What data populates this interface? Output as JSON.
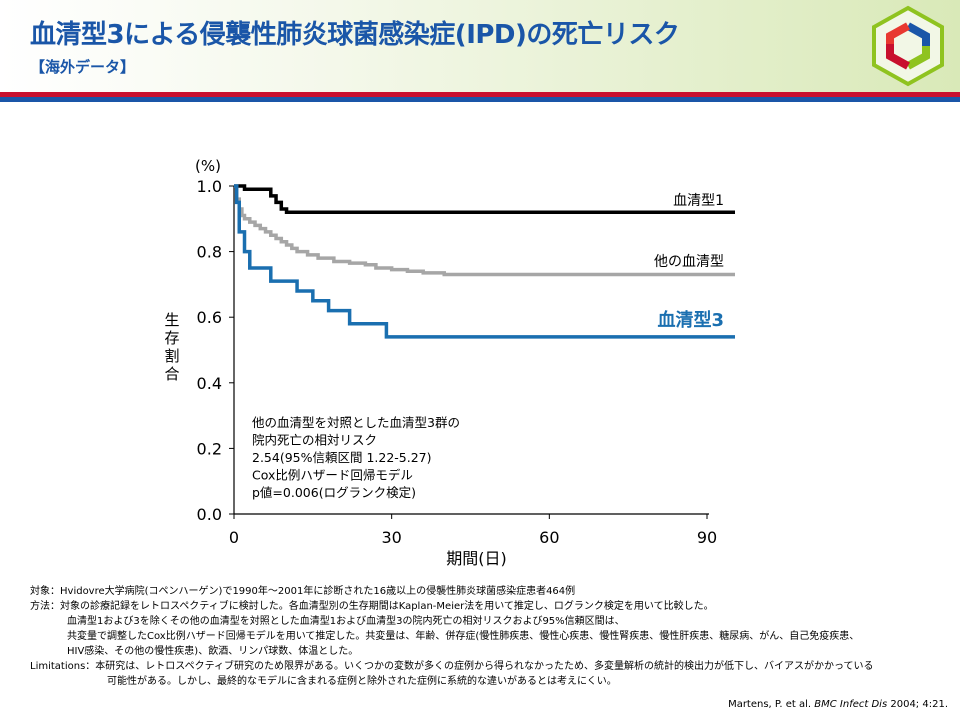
{
  "header": {
    "title": "血清型3による侵襲性肺炎球菌感染症(IPD)の死亡リスク",
    "subtitle": "【海外データ】"
  },
  "colors": {
    "title": "#1a56a8",
    "serotype1": "#000000",
    "other": "#a6a6a6",
    "serotype3": "#1a6fb0",
    "band_red": "#c8102e",
    "band_blue": "#1a56a8"
  },
  "logo": {
    "icon": "hexagon-logo-icon"
  },
  "chart_data": {
    "type": "line",
    "y_unit": "(%)",
    "ylabel": "生存割合",
    "xlabel": "期間(日)",
    "xlim": [
      0,
      90
    ],
    "ylim": [
      0.0,
      1.0
    ],
    "x_ticks": [
      "0",
      "30",
      "60",
      "90"
    ],
    "y_ticks": [
      "0.0",
      "0.2",
      "0.4",
      "0.6",
      "0.8",
      "1.0"
    ],
    "series": [
      {
        "name": "血清型1",
        "color": "#000000",
        "step": true,
        "points": [
          [
            0,
            1.0
          ],
          [
            2,
            0.99
          ],
          [
            7,
            0.97
          ],
          [
            8,
            0.95
          ],
          [
            9,
            0.93
          ],
          [
            10,
            0.92
          ],
          [
            90,
            0.92
          ]
        ]
      },
      {
        "name": "他の血清型",
        "color": "#a6a6a6",
        "step": true,
        "points": [
          [
            0,
            1.0
          ],
          [
            0.5,
            0.96
          ],
          [
            1,
            0.93
          ],
          [
            1.5,
            0.91
          ],
          [
            2,
            0.9
          ],
          [
            3,
            0.89
          ],
          [
            4,
            0.88
          ],
          [
            5,
            0.87
          ],
          [
            6,
            0.86
          ],
          [
            7,
            0.85
          ],
          [
            8,
            0.84
          ],
          [
            9,
            0.83
          ],
          [
            10,
            0.82
          ],
          [
            11,
            0.81
          ],
          [
            12,
            0.8
          ],
          [
            14,
            0.79
          ],
          [
            16,
            0.78
          ],
          [
            19,
            0.77
          ],
          [
            22,
            0.765
          ],
          [
            25,
            0.76
          ],
          [
            27,
            0.75
          ],
          [
            30,
            0.745
          ],
          [
            33,
            0.74
          ],
          [
            36,
            0.735
          ],
          [
            40,
            0.73
          ],
          [
            90,
            0.73
          ]
        ]
      },
      {
        "name": "血清型3",
        "color": "#1a6fb0",
        "step": true,
        "points": [
          [
            0,
            1.0
          ],
          [
            0.5,
            0.95
          ],
          [
            1,
            0.86
          ],
          [
            2,
            0.8
          ],
          [
            3,
            0.75
          ],
          [
            7,
            0.71
          ],
          [
            12,
            0.68
          ],
          [
            15,
            0.65
          ],
          [
            18,
            0.62
          ],
          [
            22,
            0.58
          ],
          [
            29,
            0.54
          ],
          [
            90,
            0.54
          ]
        ]
      }
    ],
    "annotation": [
      "他の血清型を対照とした血清型3群の",
      "院内死亡の相対リスク",
      "2.54(95%信頼区間 1.22-5.27)",
      "Cox比例ハザード回帰モデル",
      "p値=0.006(ログランク検定)"
    ]
  },
  "notes": {
    "subject_label": "対象：",
    "subject": "Hvidovre大学病院(コペンハーゲン)で1990年～2001年に診断された16歳以上の侵襲性肺炎球菌感染症患者464例",
    "method_label": "方法：",
    "method": [
      "対象の診療記録をレトロスペクティブに検討した。各血清型別の生存期間はKaplan-Meier法を用いて推定し、ログランク検定を用いて比較した。",
      "血清型1および3を除くその他の血清型を対照とした血清型1および血清型3の院内死亡の相対リスクおよび95%信頼区間は、",
      "共変量で調整したCox比例ハザード回帰モデルを用いて推定した。共変量は、年齢、併存症(慢性肺疾患、慢性心疾患、慢性腎疾患、慢性肝疾患、糖尿病、がん、自己免疫疾患、",
      "HIV感染、その他の慢性疾患)、飲酒、リンパ球数、体温とした。"
    ],
    "limitations_label": "Limitations：",
    "limitations": [
      "本研究は、レトロスペクティブ研究のため限界がある。いくつかの変数が多くの症例から得られなかったため、多変量解析の統計的検出力が低下し、バイアスがかかっている",
      "可能性がある。しかし、最終的なモデルに含まれる症例と除外された症例に系統的な違いがあるとは考えにくい。"
    ]
  },
  "citation": {
    "authors": "Martens, P. et al.",
    "journal": "BMC Infect Dis",
    "year_pages": "2004; 4:21."
  }
}
